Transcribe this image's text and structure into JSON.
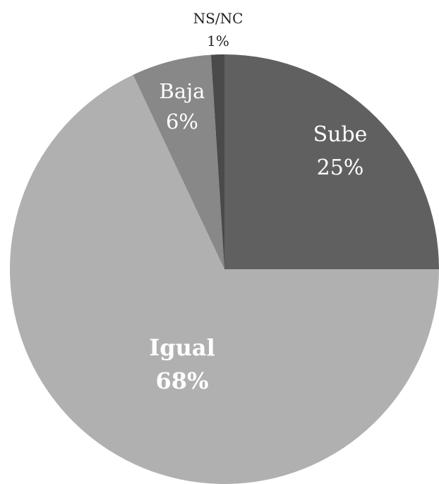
{
  "chart_data": {
    "type": "pie",
    "title": "",
    "legend": "none",
    "slices": [
      {
        "category": "Sube",
        "value": 25,
        "label": "25%",
        "color": "#606060"
      },
      {
        "category": "Igual",
        "value": 68,
        "label": "68%",
        "color": "#b0b0b0"
      },
      {
        "category": "Baja",
        "value": 6,
        "label": "6%",
        "color": "#888888"
      },
      {
        "category": "NS/NC",
        "value": 1,
        "label": "1%",
        "color": "#4a4a4a"
      }
    ]
  }
}
